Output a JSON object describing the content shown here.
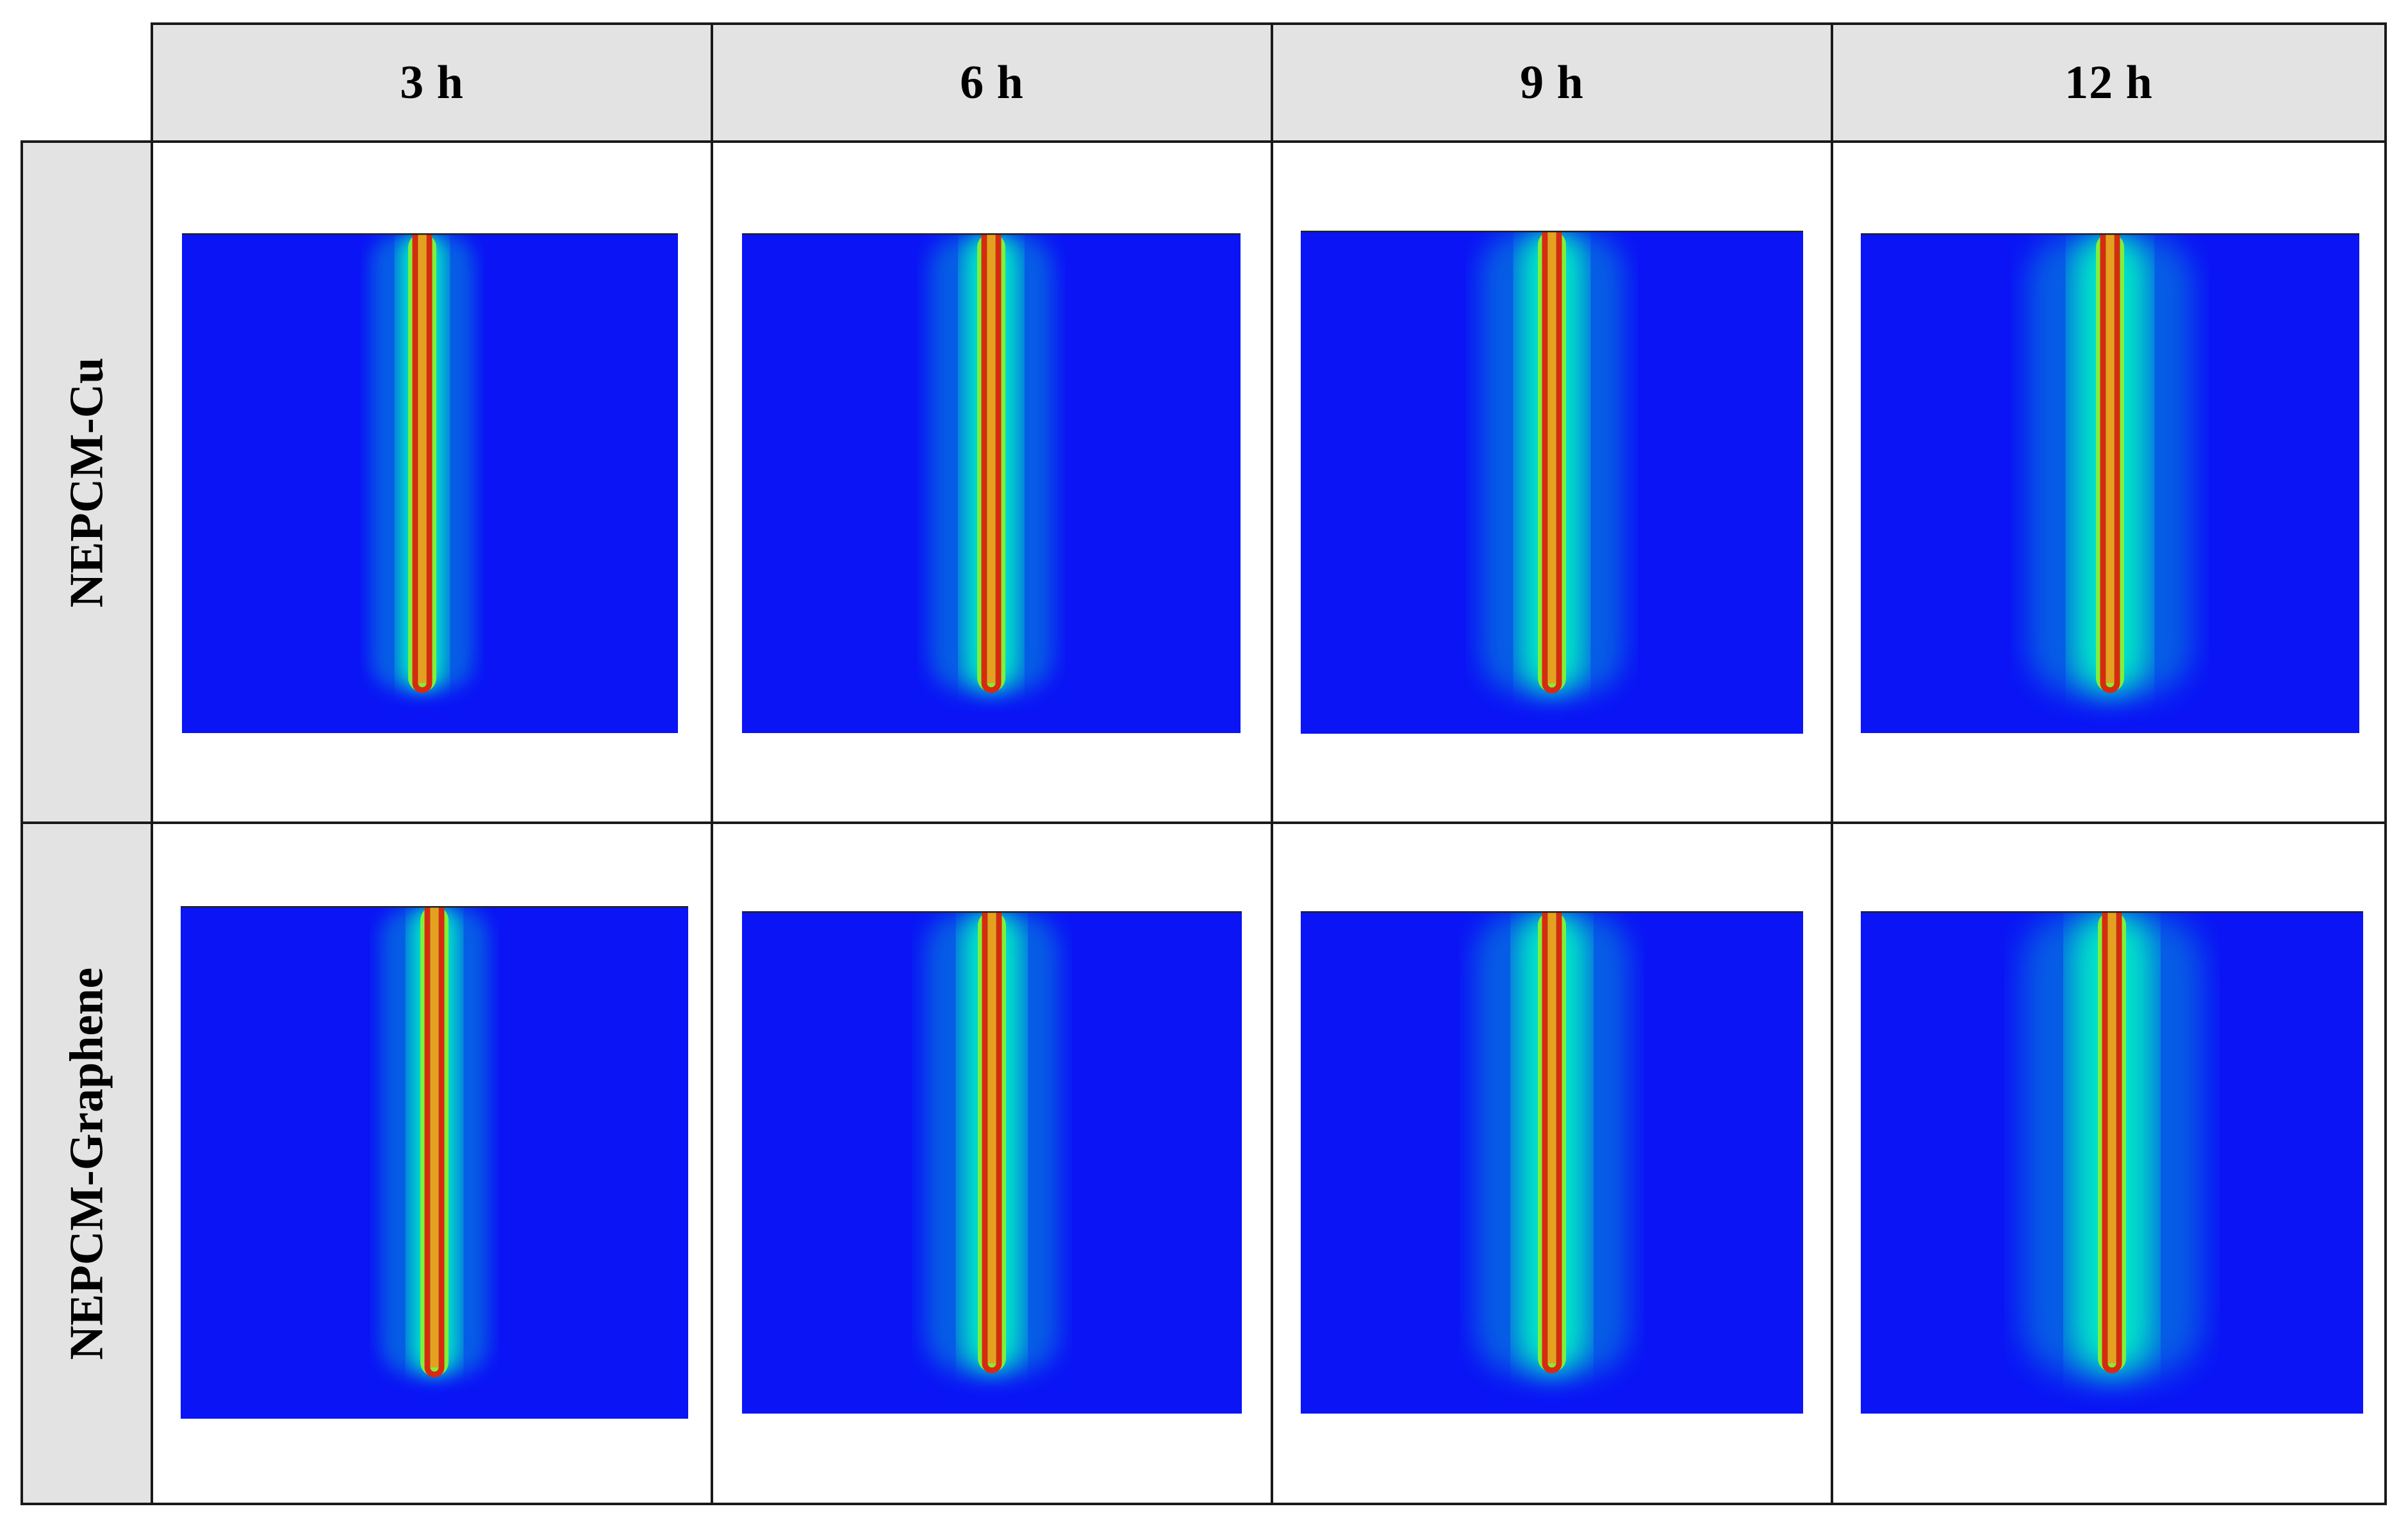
{
  "columns": [
    {
      "label": "3 h"
    },
    {
      "label": "6 h"
    },
    {
      "label": "9 h"
    },
    {
      "label": "12 h"
    }
  ],
  "rows": [
    {
      "label": "NEPCM-Cu"
    },
    {
      "label": "NEPCM-Graphene"
    }
  ],
  "contour_colors": {
    "cold": "#0a14f5",
    "cool": "#1a5cf0",
    "mid": "#00e6c8",
    "warm": "#7ef03a",
    "hot": "#e8e010",
    "peak": "#d82a10",
    "core": "#e6a020"
  }
}
